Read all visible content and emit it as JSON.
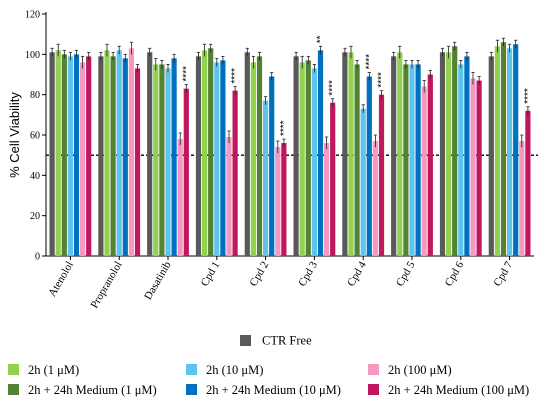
{
  "chart_data": {
    "type": "bar",
    "ylabel": "% Cell Viability",
    "ylim": [
      0,
      120
    ],
    "yticks": [
      0,
      20,
      40,
      60,
      80,
      100,
      120
    ],
    "reference_line": {
      "y": 50,
      "style": "dotted"
    },
    "categories": [
      "Atenolol",
      "Propranolol",
      "Dasatinib",
      "Cpd 1",
      "Cpd 2",
      "Cpd 3",
      "Cpd 4",
      "Cpd 5",
      "Cpd 6",
      "Cpd 7"
    ],
    "series": [
      {
        "name": "CTR Free",
        "color": "#595959",
        "values": [
          101,
          99,
          101,
          99,
          101,
          99,
          101,
          99,
          101,
          99
        ],
        "errors": [
          2,
          2,
          2,
          2,
          2,
          2,
          2,
          2,
          2,
          2
        ],
        "stars": [
          "",
          "",
          "",
          "",
          "",
          "",
          "",
          "",
          "",
          ""
        ]
      },
      {
        "name": "2h (1 μM)",
        "color": "#92d050",
        "values": [
          102,
          102,
          95,
          102,
          96,
          96,
          101,
          101,
          101,
          104
        ],
        "errors": [
          3,
          3,
          3,
          3,
          3,
          3,
          3,
          3,
          3,
          3
        ],
        "stars": [
          "",
          "",
          "",
          "",
          "",
          "",
          "",
          "",
          "",
          ""
        ]
      },
      {
        "name": "2h + 24h Medium (1 μM)",
        "color": "#548235",
        "values": [
          100,
          99,
          95,
          103,
          99,
          97,
          95,
          95,
          104,
          106
        ],
        "errors": [
          2,
          2,
          2,
          2,
          2,
          2,
          2,
          2,
          2,
          2
        ],
        "stars": [
          "",
          "",
          "",
          "",
          "",
          "",
          "",
          "",
          "",
          ""
        ]
      },
      {
        "name": "2h (10 μM)",
        "color": "#5ec4ec",
        "values": [
          99,
          102,
          93,
          96,
          77,
          93,
          73,
          95,
          95,
          103
        ],
        "errors": [
          2,
          2,
          2,
          2,
          2,
          2,
          2,
          2,
          2,
          2
        ],
        "stars": [
          "",
          "",
          "",
          "",
          "",
          "",
          "",
          "",
          "",
          ""
        ]
      },
      {
        "name": "2h + 24h Medium (10 μM)",
        "color": "#0070c0",
        "values": [
          100,
          98,
          98,
          97,
          89,
          102,
          89,
          95,
          99,
          105
        ],
        "errors": [
          2,
          2,
          2,
          2,
          2,
          2,
          2,
          2,
          2,
          2
        ],
        "stars": [
          "",
          "",
          "",
          "",
          "",
          "**",
          "****",
          "",
          "",
          ""
        ]
      },
      {
        "name": "2h (100 μM)",
        "color": "#f49ac1",
        "values": [
          96,
          103,
          58,
          59,
          54,
          56,
          57,
          84,
          88,
          57
        ],
        "errors": [
          3,
          3,
          3,
          3,
          3,
          3,
          3,
          3,
          3,
          3
        ],
        "stars": [
          "",
          "",
          "",
          "",
          "",
          "",
          "",
          "",
          "",
          ""
        ]
      },
      {
        "name": "2h + 24h Medium (100 μM)",
        "color": "#c0185e",
        "values": [
          99,
          93,
          83,
          82,
          56,
          76,
          80,
          90,
          87,
          72
        ],
        "errors": [
          2,
          2,
          2,
          2,
          2,
          2,
          2,
          2,
          2,
          2
        ],
        "stars": [
          "",
          "",
          "****",
          "****",
          "****",
          "****",
          "****",
          "",
          "",
          "****"
        ]
      }
    ],
    "legend_position": "bottom"
  }
}
